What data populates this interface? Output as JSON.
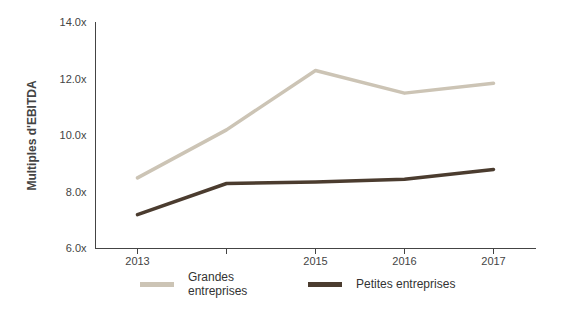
{
  "chart_data": {
    "type": "line",
    "y_label": "Multiples d'EBITDA",
    "categories": [
      "2013",
      null,
      "2015",
      "2016",
      "2017"
    ],
    "series": [
      {
        "name": "Grandes entreprises",
        "color": "#ccc4b5",
        "values": [
          8.5,
          10.2,
          12.3,
          11.5,
          11.85
        ]
      },
      {
        "name": "Petites entreprises",
        "color": "#4b3c2f",
        "values": [
          7.2,
          8.3,
          8.35,
          8.45,
          8.8
        ]
      }
    ],
    "ylim": [
      6,
      14
    ],
    "yticks": [
      {
        "value": 6,
        "label": "6.0x"
      },
      {
        "value": 8,
        "label": "8.0x"
      },
      {
        "value": 10,
        "label": "10.0x"
      },
      {
        "value": 12,
        "label": "12.0x"
      },
      {
        "value": 14,
        "label": "14.0x"
      }
    ],
    "grid": false,
    "legend": "bottom"
  }
}
